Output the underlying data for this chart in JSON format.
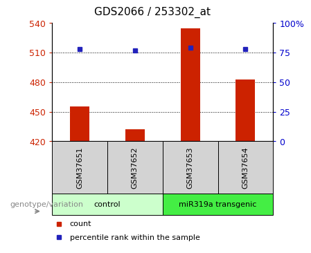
{
  "title": "GDS2066 / 253302_at",
  "samples": [
    "GSM37651",
    "GSM37652",
    "GSM37653",
    "GSM37654"
  ],
  "counts": [
    455,
    432,
    535,
    483
  ],
  "percentiles": [
    78,
    77,
    79,
    78
  ],
  "ylim_left": [
    420,
    540
  ],
  "ylim_right": [
    0,
    100
  ],
  "yticks_left": [
    420,
    450,
    480,
    510,
    540
  ],
  "yticks_right": [
    0,
    25,
    50,
    75,
    100
  ],
  "ytick_labels_right": [
    "0",
    "25",
    "50",
    "75",
    "100%"
  ],
  "bar_color": "#cc2200",
  "scatter_color": "#2222bb",
  "groups": [
    {
      "label": "control",
      "samples": [
        0,
        1
      ],
      "color": "#ccffcc"
    },
    {
      "label": "miR319a transgenic",
      "samples": [
        2,
        3
      ],
      "color": "#44ee44"
    }
  ],
  "xlabel_group": "genotype/variation",
  "legend_items": [
    {
      "label": "count",
      "color": "#cc2200"
    },
    {
      "label": "percentile rank within the sample",
      "color": "#2222bb"
    }
  ],
  "background_label": "#d3d3d3",
  "bar_width": 0.35
}
